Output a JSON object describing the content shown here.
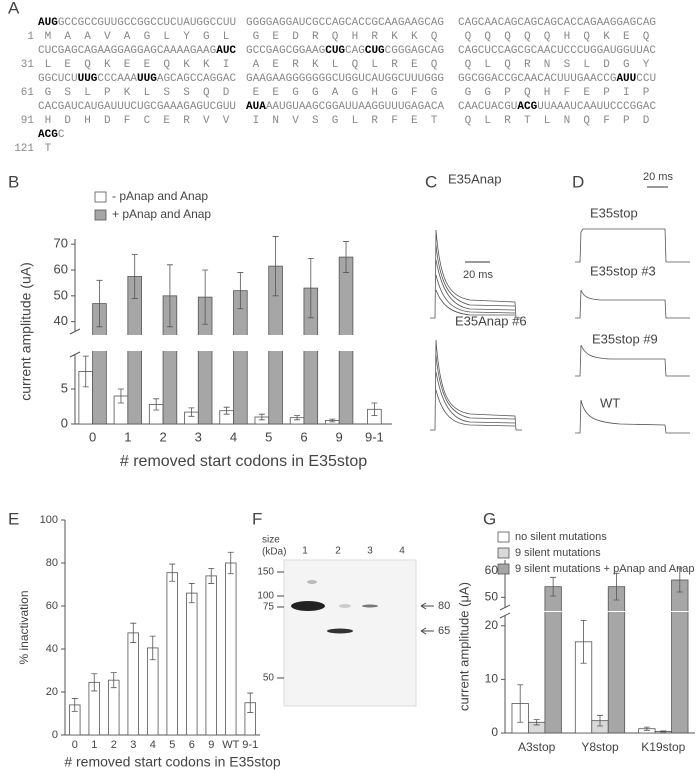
{
  "panel_labels": [
    "A",
    "B",
    "C",
    "D",
    "E",
    "F",
    "G"
  ],
  "sequence": {
    "lines": [
      {
        "number": 1,
        "nt": [
          [
            {
              "text": "AUG",
              "bold": true
            },
            {
              "text": "GCCGCCGUUGCCGGCCUCUAUGGCCUU",
              "bold": false
            }
          ],
          [
            {
              "text": "GGGGAGGAUCGCCAGCACCGCAAGAAGCAG",
              "bold": false
            }
          ],
          [
            {
              "text": "CAGCAACAGCAGCAGCACCAGAAGGAGCAG",
              "bold": false
            }
          ]
        ],
        "aa": [
          "MAAVAGLYGL",
          "GEDRQHRKKQ",
          "QQQQQHQKEQ"
        ]
      },
      {
        "number": 31,
        "nt": [
          [
            {
              "text": "CUCGAGCAGAAGGAGGAGCAAAAGAAG",
              "bold": false
            },
            {
              "text": "AUC",
              "bold": true
            }
          ],
          [
            {
              "text": "GCCGAGCGGAAG",
              "bold": false
            },
            {
              "text": "CUG",
              "bold": true
            },
            {
              "text": "CAG",
              "bold": false
            },
            {
              "text": "CUG",
              "bold": true
            },
            {
              "text": "CGGGAGCAG",
              "bold": false
            }
          ],
          [
            {
              "text": "CAGCUCCAGCGCAACUCCCUGGAUGGUUAC",
              "bold": false
            }
          ]
        ],
        "aa": [
          "LEQKEEQKKI",
          "AERKLQLREQ",
          "QLQRNSLDGY"
        ]
      },
      {
        "number": 61,
        "nt": [
          [
            {
              "text": "GGCUCU",
              "bold": false
            },
            {
              "text": "UUG",
              "bold": true
            },
            {
              "text": "CCCAAA",
              "bold": false
            },
            {
              "text": "UUG",
              "bold": true
            },
            {
              "text": "AGCAGCCAGGAC",
              "bold": false
            }
          ],
          [
            {
              "text": "GAAGAAGGGGGGGCUGGUCAUGGCUUUGGG",
              "bold": false
            }
          ],
          [
            {
              "text": "GGCGGACCGCAACACUUUGAACCG",
              "bold": false
            },
            {
              "text": "AUU",
              "bold": true
            },
            {
              "text": "CCU",
              "bold": false
            }
          ]
        ],
        "aa": [
          "GSLPKLSSQD",
          "EEGGAGHGFG",
          "GGPQHFEPIP"
        ]
      },
      {
        "number": 91,
        "nt": [
          [
            {
              "text": "CACGAUCAUGAUUUCUGCGAAAGAGUCGUU",
              "bold": false
            }
          ],
          [
            {
              "text": "AUA",
              "bold": true
            },
            {
              "text": "AAUGUAAGCGGAUUAAGGUUUGAGACA",
              "bold": false
            }
          ],
          [
            {
              "text": "CAACUACGU",
              "bold": false
            },
            {
              "text": "ACG",
              "bold": true
            },
            {
              "text": "UUAAAUCAAUUCCCGGAC",
              "bold": false
            }
          ]
        ],
        "aa": [
          "HDHDFCERVV",
          "INVSGLRFET",
          "QLRTLNQFPD"
        ]
      },
      {
        "number": 121,
        "nt": [
          [
            {
              "text": "ACG",
              "bold": true
            },
            {
              "text": "C",
              "bold": false
            }
          ]
        ],
        "aa": [
          "T"
        ]
      }
    ]
  },
  "traces": {
    "c": {
      "labels": [
        "E35Anap",
        "E35Anap #6"
      ],
      "scale": "20 ms"
    },
    "d": {
      "labels": [
        "E35stop",
        "E35stop #3",
        "E35stop #9",
        "WT"
      ],
      "scale": "20 ms"
    }
  },
  "blot": {
    "size_label": [
      "size",
      "(kDa)"
    ],
    "lanes": [
      1,
      2,
      3,
      4
    ],
    "markers": [
      150,
      100,
      75,
      50
    ],
    "arrows": [
      80,
      65
    ]
  },
  "chart_data": [
    {
      "type": "bar",
      "categories": [
        "0",
        "1",
        "2",
        "3",
        "4",
        "5",
        "6",
        "9",
        "9-1"
      ],
      "ylabel": "current amplitude (uA)",
      "xlabel": "# removed start codons in E35stop",
      "ylim": [
        0,
        10
      ],
      "yticks": [
        0,
        5
      ],
      "ylim_upper": [
        36,
        72
      ],
      "yticks_upper": [
        40,
        50,
        60,
        70
      ],
      "series": [
        {
          "name": "- pAnap and Anap",
          "color": "#ffffff",
          "values": [
            7.5,
            4,
            2.8,
            1.7,
            1.9,
            1,
            0.9,
            0.5,
            2.1
          ],
          "errors": [
            2.2,
            1,
            0.8,
            0.6,
            0.5,
            0.4,
            0.3,
            0.2,
            0.9
          ]
        },
        {
          "name": "+ pAnap and Anap",
          "color": "#a6a6a6",
          "values": [
            47,
            57.5,
            50,
            49.5,
            52,
            61.5,
            53,
            65,
            null
          ],
          "errors": [
            9,
            8.5,
            12,
            10.5,
            7,
            11.5,
            11.5,
            6,
            null
          ]
        }
      ]
    },
    {
      "type": "bar",
      "categories": [
        "0",
        "1",
        "2",
        "3",
        "4",
        "5",
        "6",
        "9",
        "WT",
        "9-1"
      ],
      "ylabel": "% inactivation",
      "xlabel": "# removed start codons in E35stop",
      "ylim": [
        0,
        100
      ],
      "yticks": [
        0,
        20,
        40,
        60,
        80,
        100
      ],
      "series": [
        {
          "color": "#ffffff",
          "values": [
            14,
            24.5,
            25.5,
            47.5,
            40.5,
            75.5,
            66,
            74,
            80,
            15
          ],
          "errors": [
            3,
            4,
            3.5,
            4.5,
            5.5,
            4,
            4.5,
            3.5,
            5,
            4.5
          ]
        }
      ]
    },
    {
      "type": "bar",
      "categories": [
        "A3stop",
        "Y8stop",
        "K19stop"
      ],
      "ylabel": "current amplitude (μA)",
      "ylim": [
        0,
        22
      ],
      "yticks": [
        0,
        10,
        20
      ],
      "ylim_upper": [
        46,
        64
      ],
      "yticks_upper": [
        50,
        60
      ],
      "series": [
        {
          "name": "no silent mutations",
          "color": "#ffffff",
          "values": [
            5.5,
            17,
            0.8
          ],
          "errors": [
            3.5,
            4,
            0.3
          ]
        },
        {
          "name": "9 silent mutations",
          "color": "#d9d9d9",
          "values": [
            2,
            2.3,
            0.3
          ],
          "errors": [
            0.5,
            1,
            0.1
          ]
        },
        {
          "name": "9 silent mutations + pAnap and Anap",
          "color": "#a6a6a6",
          "values": [
            54,
            54,
            56.5
          ],
          "errors": [
            3.5,
            5,
            4.5
          ]
        }
      ]
    }
  ]
}
